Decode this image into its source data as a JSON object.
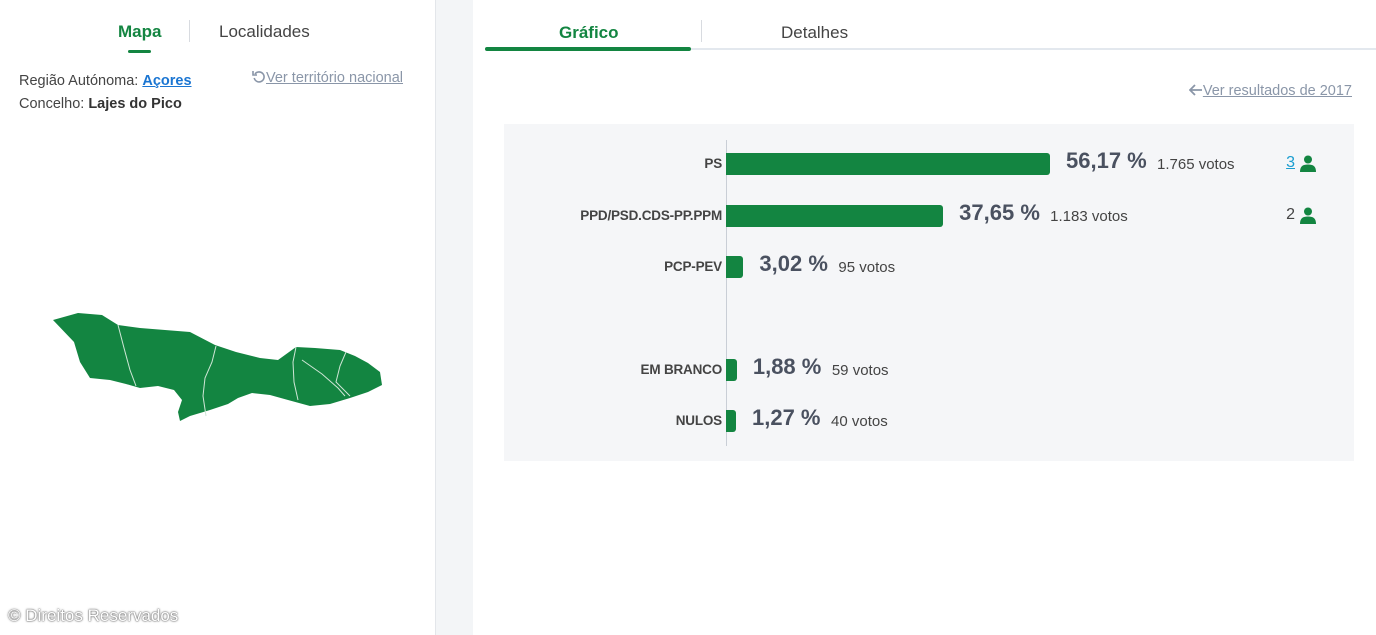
{
  "left_tabs": {
    "mapa": "Mapa",
    "localidades": "Localidades"
  },
  "location": {
    "region_label": "Região Autónoma:",
    "region_value": "Açores",
    "concelho_label": "Concelho:",
    "concelho_value": "Lajes do Pico",
    "ver_nacional": "Ver território nacional"
  },
  "copyright": "© Direitos Reservados",
  "right_tabs": {
    "grafico": "Gráfico",
    "detalhes": "Detalhes"
  },
  "ver_resultados": "Ver resultados de 2017",
  "colors": {
    "accent": "#138541",
    "link": "#1a75d2",
    "muted": "#8a96a8"
  },
  "chart_data": {
    "type": "bar",
    "orientation": "horizontal",
    "categories": [
      "PS",
      "PPD/PSD.CDS-PP.PPM",
      "PCP-PEV",
      "EM BRANCO",
      "NULOS"
    ],
    "values": [
      56.17,
      37.65,
      3.02,
      1.88,
      1.27
    ],
    "value_labels": [
      "56,17 %",
      "37,65 %",
      "3,02 %",
      "1,88 %",
      "1,27 %"
    ],
    "votes": [
      "1.765 votos",
      "1.183 votos",
      "95 votos",
      "59 votos",
      "40 votos"
    ],
    "seats": [
      "3",
      "2",
      "",
      "",
      ""
    ],
    "title": "",
    "xlabel": "",
    "ylabel": "",
    "xlim": [
      0,
      100
    ]
  }
}
